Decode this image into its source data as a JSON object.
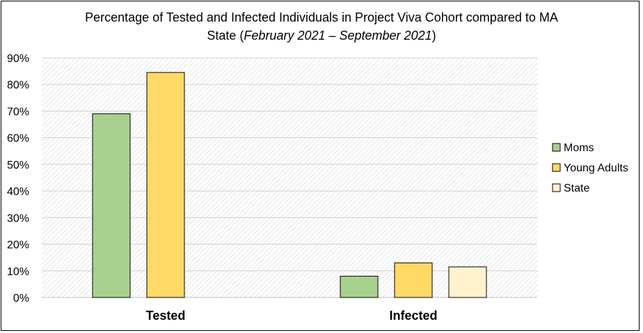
{
  "title": {
    "line1": "Percentage of Tested and Infected Individuals in Project Viva Cohort compared to MA",
    "line2_prefix": "State (",
    "line2_italic": "February 2021 – September 2021",
    "line2_suffix": ")"
  },
  "chart_data": {
    "type": "bar",
    "title": "Percentage of Tested and Infected Individuals in Project Viva Cohort compared to MA State (February 2021 – September 2021)",
    "categories": [
      "Tested",
      "Infected"
    ],
    "series": [
      {
        "name": "Moms",
        "color": "#a9d18e",
        "values": [
          0.69,
          0.08
        ]
      },
      {
        "name": "Young Adults",
        "color": "#ffd966",
        "values": [
          0.845,
          0.13
        ]
      },
      {
        "name": "State",
        "color": "#fff2cc",
        "values": [
          null,
          0.115
        ]
      }
    ],
    "ylim": [
      0,
      0.9
    ],
    "yticks": [
      0,
      0.1,
      0.2,
      0.3,
      0.4,
      0.5,
      0.6,
      0.7,
      0.8,
      0.9
    ],
    "ytick_labels": [
      "0%",
      "10%",
      "20%",
      "30%",
      "40%",
      "50%",
      "60%",
      "70%",
      "80%",
      "90%"
    ],
    "xlabel": "",
    "ylabel": "",
    "grid": true,
    "legend_position": "right"
  }
}
